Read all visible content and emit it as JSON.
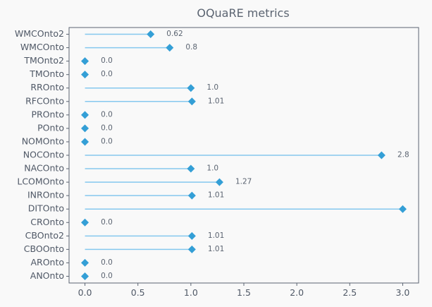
{
  "chart_data": {
    "type": "lollipop",
    "title": "OQuaRE metrics",
    "xlabel": "",
    "ylabel": "",
    "categories": [
      "ANOnto",
      "AROnto",
      "CBOOnto",
      "CBOnto2",
      "CROnto",
      "DITOnto",
      "INROnto",
      "LCOMOnto",
      "NACOnto",
      "NOCOnto",
      "NOMOnto",
      "POnto",
      "PROnto",
      "RFCOnto",
      "RROnto",
      "TMOnto",
      "TMOnto2",
      "WMCOnto",
      "WMCOnto2"
    ],
    "values": [
      0.0,
      0.0,
      1.01,
      1.01,
      0.0,
      3.0,
      1.01,
      1.27,
      1.0,
      2.8,
      0.0,
      0.0,
      0.0,
      1.01,
      1.0,
      0.0,
      0.0,
      0.8,
      0.62
    ],
    "value_labels": [
      "0.0",
      "0.0",
      "1.01",
      "1.01",
      "0.0",
      "",
      "1.01",
      "1.27",
      "1.0",
      "2.8",
      "0.0",
      "0.0",
      "0.0",
      "1.01",
      "1.0",
      "0.0",
      "0.0",
      "0.8",
      "0.62"
    ],
    "xlim": [
      -0.15,
      3.15
    ],
    "xticks": [
      0.0,
      0.5,
      1.0,
      1.5,
      2.0,
      2.5,
      3.0
    ],
    "xtick_labels": [
      "0.0",
      "0.5",
      "1.0",
      "1.5",
      "2.0",
      "2.5",
      "3.0"
    ],
    "grid": false,
    "colors": {
      "marker": "#349fd6",
      "stem": "#85c8ee",
      "text": "#5b6471",
      "axis": "#5b6471",
      "background": "#f9f9f9"
    }
  }
}
